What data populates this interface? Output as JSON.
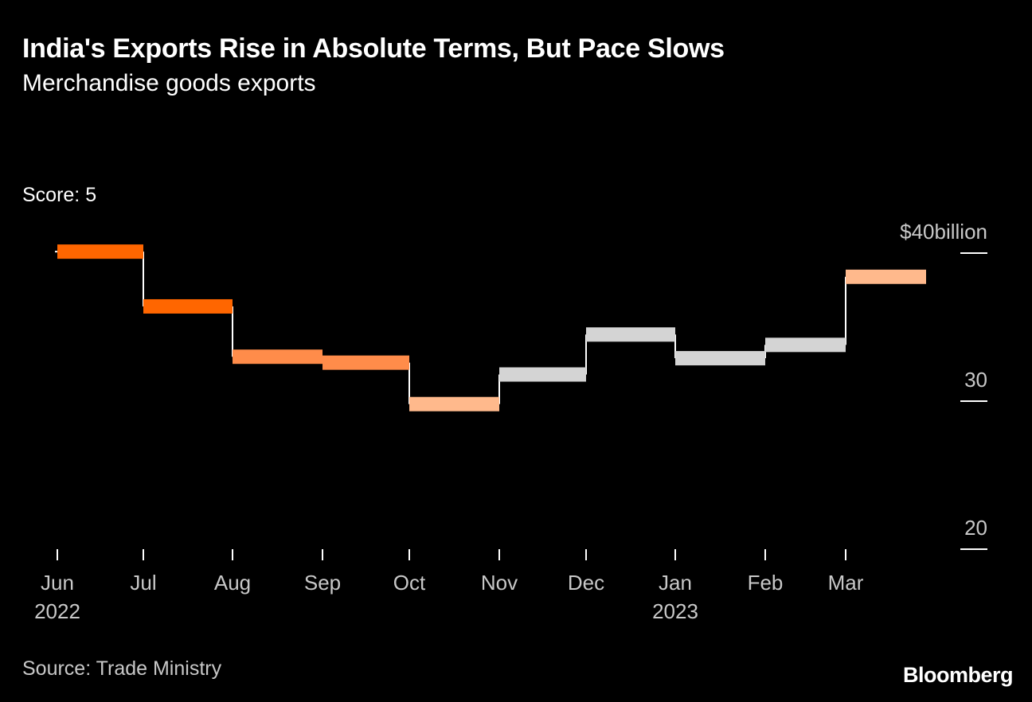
{
  "header": {
    "title": "India's Exports Rise in Absolute Terms, But Pace Slows",
    "subtitle": "Merchandise goods exports"
  },
  "score_label": "Score: 5",
  "footer": {
    "source": "Source: Trade Ministry",
    "brand": "Bloomberg"
  },
  "colors": {
    "background": "#000000",
    "text": "#ffffff",
    "muted_text": "#c8c8c8",
    "connector": "#ffffff",
    "dark_orange": "#ff6600",
    "mid_orange": "#ff8c4a",
    "light_orange": "#ffb98c",
    "gray": "#d4d4d4"
  },
  "chart_data": {
    "type": "line",
    "style": "step",
    "title": "India's Exports Rise in Absolute Terms, But Pace Slows",
    "subtitle": "Merchandise goods exports",
    "xlabel": "",
    "ylabel": "",
    "unit": "billion USD",
    "ylim": [
      20,
      40
    ],
    "y_ticks": [
      {
        "value": 40,
        "label": "$40billion"
      },
      {
        "value": 30,
        "label": "30"
      },
      {
        "value": 20,
        "label": "20"
      }
    ],
    "categories": [
      "Jun",
      "Jul",
      "Aug",
      "Sep",
      "Oct",
      "Nov",
      "Dec",
      "Jan",
      "Feb",
      "Mar"
    ],
    "year_labels": [
      {
        "category": "Jun",
        "label": "2022"
      },
      {
        "category": "Jan",
        "label": "2023"
      }
    ],
    "values": [
      40.1,
      36.4,
      33.0,
      32.6,
      29.8,
      31.8,
      34.5,
      32.9,
      33.8,
      38.4
    ],
    "series_colors": [
      "dark_orange",
      "dark_orange",
      "mid_orange",
      "mid_orange",
      "light_orange",
      "gray",
      "gray",
      "gray",
      "gray",
      "light_orange"
    ],
    "grid": false,
    "legend": "none"
  }
}
